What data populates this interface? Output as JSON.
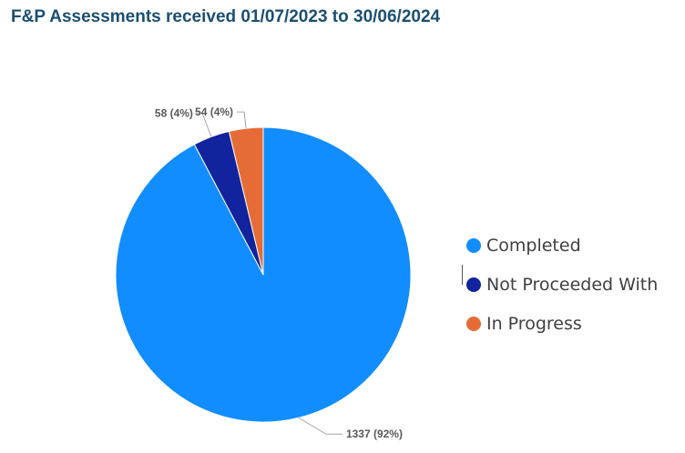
{
  "chart_data": {
    "type": "pie",
    "title": "F&P Assessments received 01/07/2023 to 30/06/2024",
    "legend_position": "right",
    "slices": [
      {
        "label": "Completed",
        "value": 1337,
        "data_label": "1337 (92%)",
        "color": "#118dff"
      },
      {
        "label": "Not Proceeded With",
        "value": 58,
        "data_label": "58 (4%)",
        "color": "#12239e"
      },
      {
        "label": "In Progress",
        "value": 54,
        "data_label": "54 (4%)",
        "color": "#e66c37"
      }
    ]
  }
}
